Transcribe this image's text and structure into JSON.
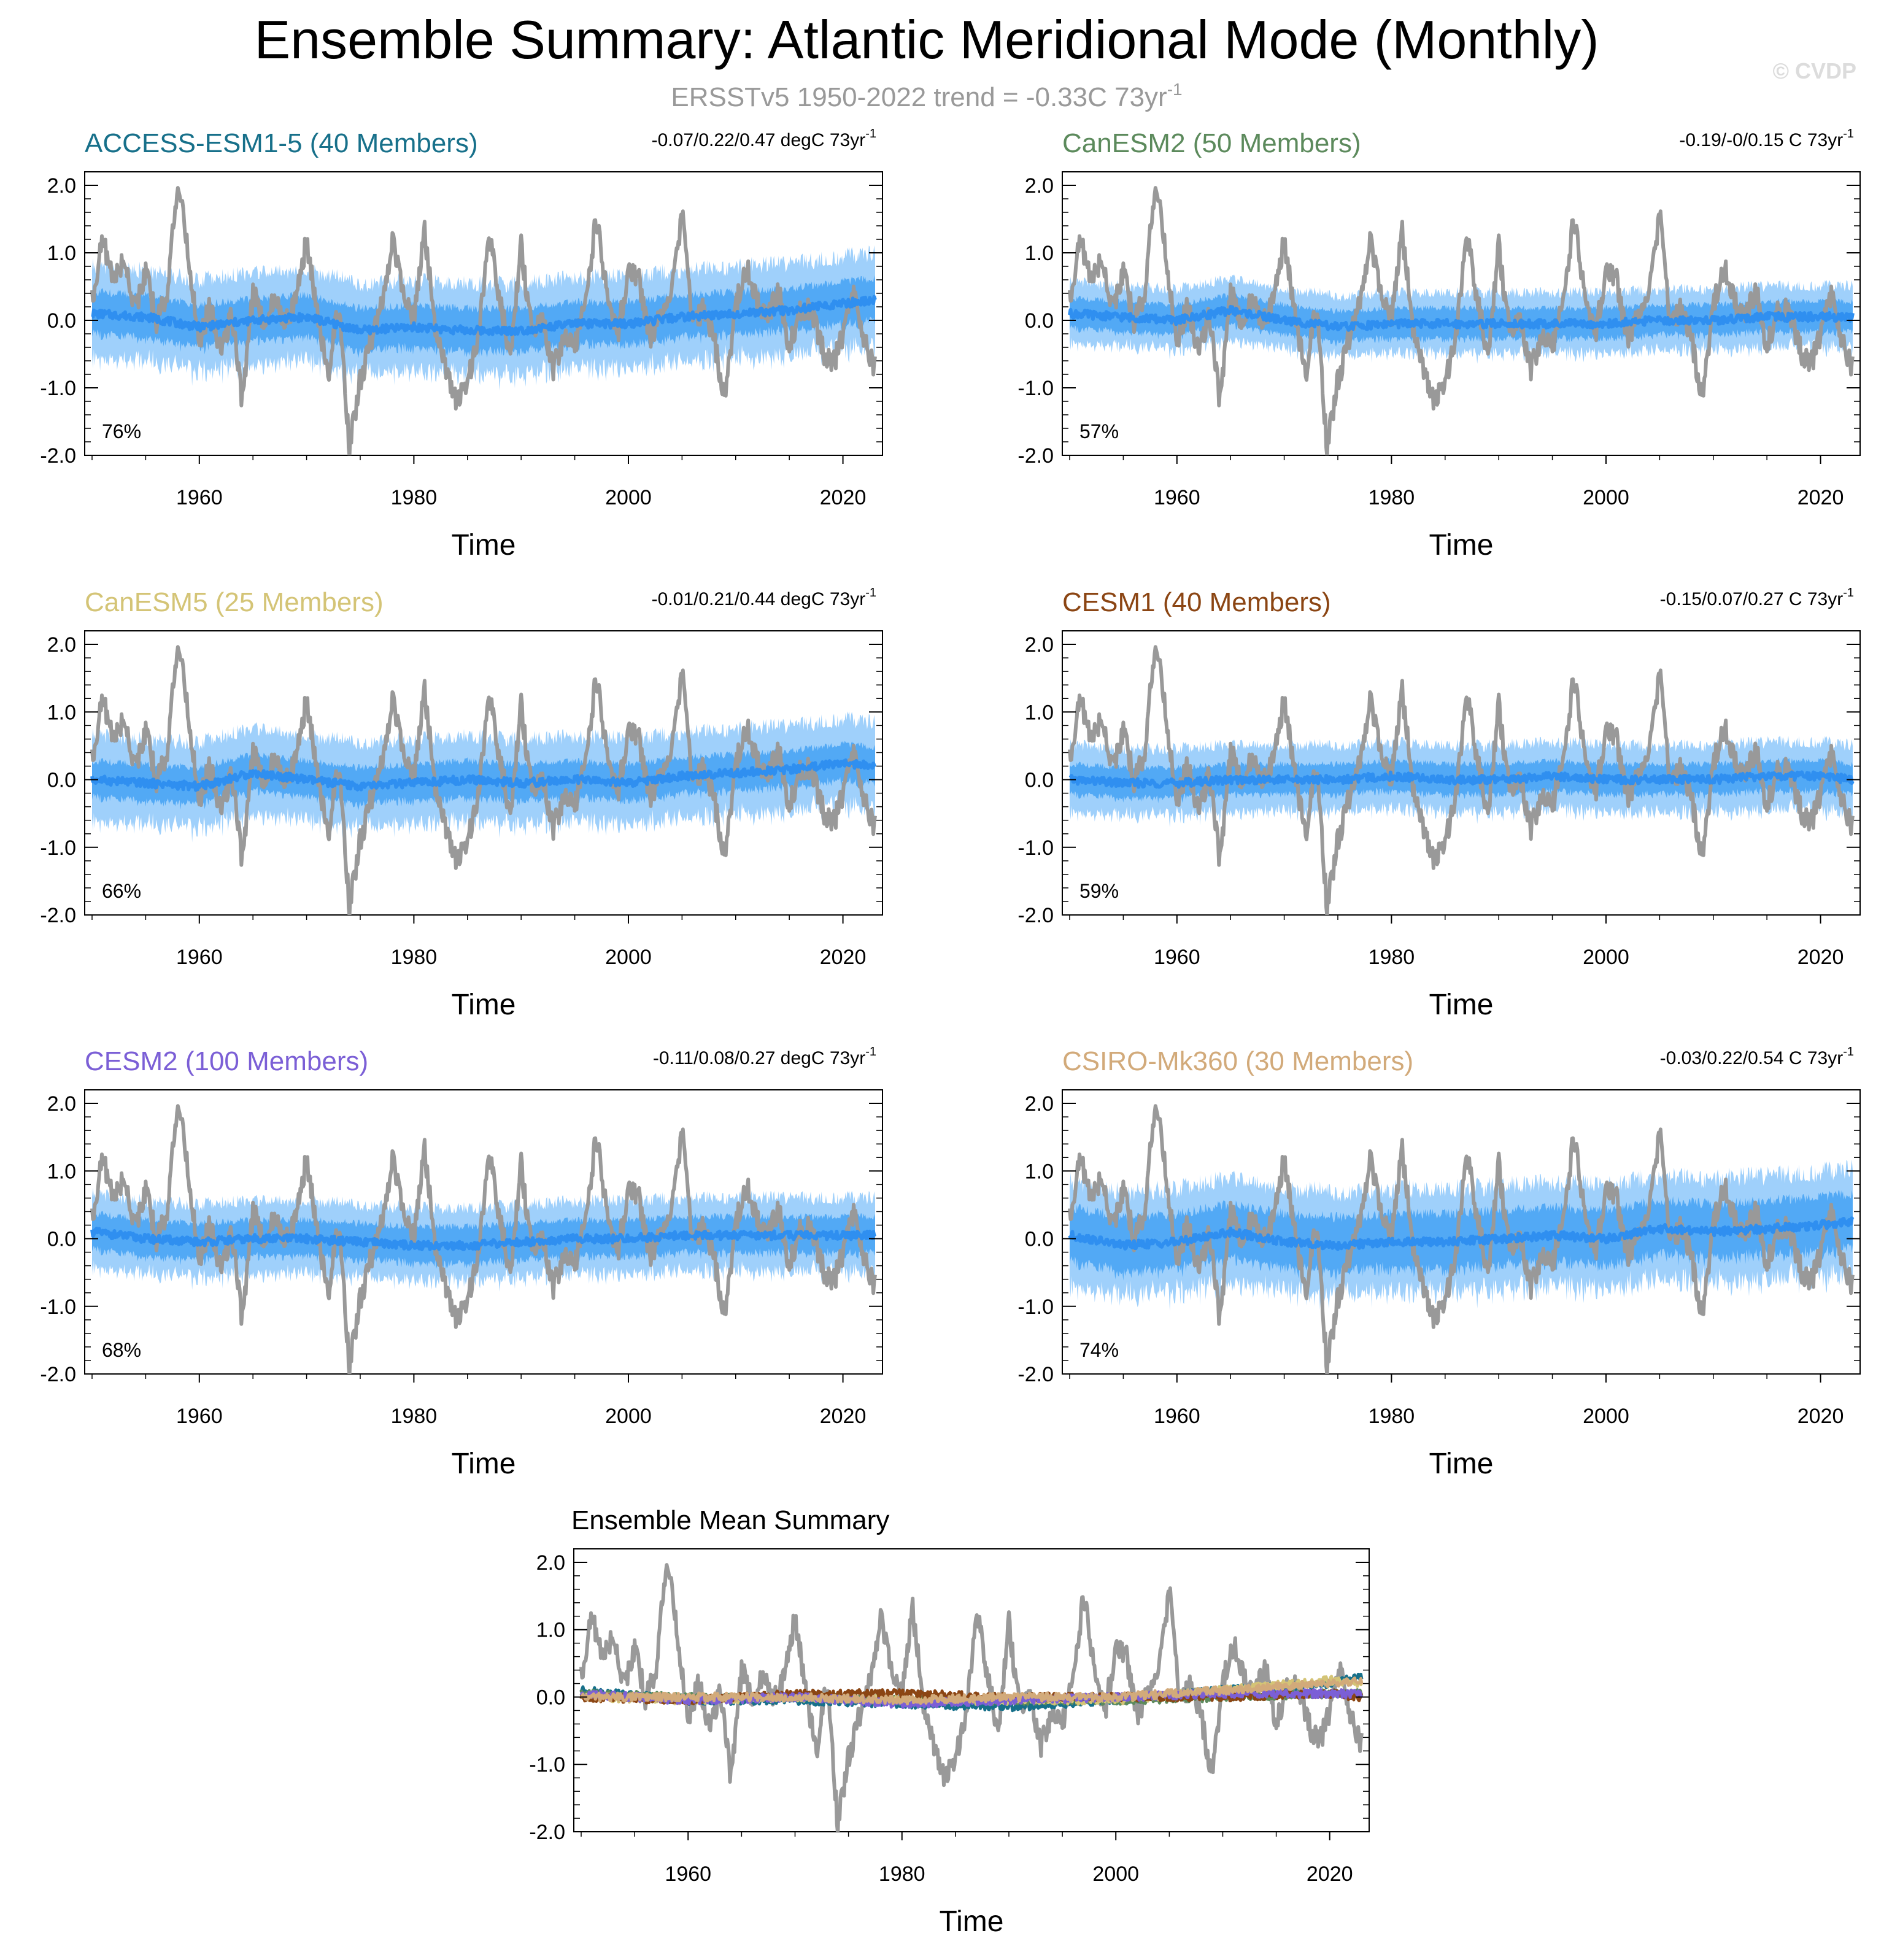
{
  "title": "Ensemble Summary: Atlantic Meridional Mode (Monthly)",
  "subtitle": {
    "text": "ERSSTv5 1950-2022 trend = -0.33C 73yr",
    "sup": "-1"
  },
  "watermark": "© CVDP",
  "colors": {
    "observed": "#999999",
    "ensemble_mean": "#2f8ff0",
    "spread_outer": "#9fd0fb",
    "spread_inner": "#52a9f5",
    "subtitle": "#999999",
    "watermark": "#dcdcdc"
  },
  "chart_data": [
    {
      "type": "line",
      "title": "ACCESS-ESM1-5 (40 Members)",
      "title_color": "#17708a",
      "trend_text": "-0.07/0.22/0.47 degC 73yr",
      "trend_sup": "-1",
      "pct_label": "76%",
      "xlabel": "Time",
      "xlim": [
        1950,
        2023
      ],
      "ylim": [
        -2.0,
        2.2
      ],
      "xticks": [
        "1960",
        "1980",
        "2000",
        "2020"
      ],
      "yticks": [
        "2.0",
        "1.0",
        "0.0",
        "-1.0",
        "-2.0"
      ],
      "series": [
        {
          "role": "ensemble-mean",
          "x": [
            1950,
            1955,
            1960,
            1965,
            1970,
            1975,
            1980,
            1985,
            1990,
            1995,
            2000,
            2005,
            2010,
            2015,
            2020,
            2023
          ],
          "values": [
            0.1,
            0.05,
            -0.1,
            0.0,
            0.05,
            -0.15,
            -0.1,
            -0.15,
            -0.15,
            -0.05,
            -0.05,
            0.05,
            0.1,
            0.15,
            0.25,
            0.3
          ]
        },
        {
          "role": "spread-outer",
          "halfwidth": 0.75
        },
        {
          "role": "spread-inner",
          "halfwidth": 0.35
        }
      ]
    },
    {
      "type": "line",
      "title": "CanESM2 (50 Members)",
      "title_color": "#5c8a5c",
      "trend_text": "-0.19/-0/0.15 C 73yr",
      "trend_sup": "-1",
      "pct_label": "57%",
      "xlabel": "Time",
      "xlim": [
        1950,
        2023
      ],
      "ylim": [
        -2.0,
        2.2
      ],
      "xticks": [
        "1960",
        "1980",
        "2000",
        "2020"
      ],
      "yticks": [
        "2.0",
        "1.0",
        "0.0",
        "-1.0",
        "-2.0"
      ],
      "series": [
        {
          "role": "ensemble-mean",
          "x": [
            1950,
            1955,
            1960,
            1965,
            1970,
            1975,
            1980,
            1985,
            1990,
            1995,
            2000,
            2005,
            2010,
            2015,
            2020,
            2023
          ],
          "values": [
            0.1,
            0.05,
            0.0,
            0.15,
            0.0,
            -0.1,
            -0.05,
            -0.05,
            -0.05,
            -0.05,
            -0.05,
            0.0,
            0.0,
            0.05,
            0.05,
            0.05
          ]
        },
        {
          "role": "spread-outer",
          "halfwidth": 0.5
        },
        {
          "role": "spread-inner",
          "halfwidth": 0.25
        }
      ]
    },
    {
      "type": "line",
      "title": "CanESM5 (25 Members)",
      "title_color": "#d4c476",
      "trend_text": "-0.01/0.21/0.44 degC 73yr",
      "trend_sup": "-1",
      "pct_label": "66%",
      "xlabel": "Time",
      "xlim": [
        1950,
        2023
      ],
      "ylim": [
        -2.0,
        2.2
      ],
      "xticks": [
        "1960",
        "1980",
        "2000",
        "2020"
      ],
      "yticks": [
        "2.0",
        "1.0",
        "0.0",
        "-1.0",
        "-2.0"
      ],
      "series": [
        {
          "role": "ensemble-mean",
          "x": [
            1950,
            1955,
            1960,
            1965,
            1970,
            1975,
            1980,
            1985,
            1990,
            1995,
            2000,
            2005,
            2010,
            2015,
            2020,
            2023
          ],
          "values": [
            0.0,
            -0.05,
            -0.1,
            0.1,
            0.0,
            -0.1,
            -0.05,
            0.0,
            -0.05,
            0.0,
            -0.05,
            0.05,
            0.1,
            0.15,
            0.25,
            0.2
          ]
        },
        {
          "role": "spread-outer",
          "halfwidth": 0.7
        },
        {
          "role": "spread-inner",
          "halfwidth": 0.3
        }
      ]
    },
    {
      "type": "line",
      "title": "CESM1 (40 Members)",
      "title_color": "#8b4513",
      "trend_text": "-0.15/0.07/0.27 C 73yr",
      "trend_sup": "-1",
      "pct_label": "59%",
      "xlabel": "Time",
      "xlim": [
        1950,
        2023
      ],
      "ylim": [
        -2.0,
        2.2
      ],
      "xticks": [
        "1960",
        "1980",
        "2000",
        "2020"
      ],
      "yticks": [
        "2.0",
        "1.0",
        "0.0",
        "-1.0",
        "-2.0"
      ],
      "series": [
        {
          "role": "ensemble-mean",
          "x": [
            1950,
            1955,
            1960,
            1965,
            1970,
            1975,
            1980,
            1985,
            1990,
            1995,
            2000,
            2005,
            2010,
            2015,
            2020,
            2023
          ],
          "values": [
            0.0,
            -0.05,
            -0.05,
            0.0,
            0.0,
            0.0,
            0.05,
            0.0,
            0.0,
            0.05,
            0.0,
            0.0,
            0.0,
            0.05,
            0.05,
            0.0
          ]
        },
        {
          "role": "spread-outer",
          "halfwidth": 0.55
        },
        {
          "role": "spread-inner",
          "halfwidth": 0.25
        }
      ]
    },
    {
      "type": "line",
      "title": "CESM2 (100 Members)",
      "title_color": "#7b5fd6",
      "trend_text": "-0.11/0.08/0.27 degC 73yr",
      "trend_sup": "-1",
      "pct_label": "68%",
      "xlabel": "Time",
      "xlim": [
        1950,
        2023
      ],
      "ylim": [
        -2.0,
        2.2
      ],
      "xticks": [
        "1960",
        "1980",
        "2000",
        "2020"
      ],
      "yticks": [
        "2.0",
        "1.0",
        "0.0",
        "-1.0",
        "-2.0"
      ],
      "series": [
        {
          "role": "ensemble-mean",
          "x": [
            1950,
            1955,
            1960,
            1965,
            1970,
            1975,
            1980,
            1985,
            1990,
            1995,
            2000,
            2005,
            2010,
            2015,
            2020,
            2023
          ],
          "values": [
            0.1,
            0.0,
            -0.05,
            0.0,
            0.0,
            -0.05,
            -0.1,
            -0.1,
            -0.05,
            0.0,
            0.0,
            0.05,
            0.05,
            0.05,
            0.05,
            0.05
          ]
        },
        {
          "role": "spread-outer",
          "halfwidth": 0.6
        },
        {
          "role": "spread-inner",
          "halfwidth": 0.3
        }
      ]
    },
    {
      "type": "line",
      "title": "CSIRO-Mk360 (30 Members)",
      "title_color": "#d2aa7a",
      "trend_text": "-0.03/0.22/0.54 C 73yr",
      "trend_sup": "-1",
      "pct_label": "74%",
      "xlabel": "Time",
      "xlim": [
        1950,
        2023
      ],
      "ylim": [
        -2.0,
        2.2
      ],
      "xticks": [
        "1960",
        "1980",
        "2000",
        "2020"
      ],
      "yticks": [
        "2.0",
        "1.0",
        "0.0",
        "-1.0",
        "-2.0"
      ],
      "series": [
        {
          "role": "ensemble-mean",
          "x": [
            1950,
            1955,
            1960,
            1965,
            1970,
            1975,
            1980,
            1985,
            1990,
            1995,
            2000,
            2005,
            2010,
            2015,
            2020,
            2023
          ],
          "values": [
            0.05,
            -0.1,
            -0.05,
            0.1,
            -0.05,
            -0.1,
            -0.05,
            -0.05,
            0.0,
            0.05,
            0.0,
            0.15,
            0.1,
            0.15,
            0.2,
            0.25
          ]
        },
        {
          "role": "spread-outer",
          "halfwidth": 0.85
        },
        {
          "role": "spread-inner",
          "halfwidth": 0.45
        }
      ]
    },
    {
      "type": "line",
      "title": "Ensemble Mean Summary",
      "title_color": "#000000",
      "xlabel": "Time",
      "xlim": [
        1950,
        2023
      ],
      "ylim": [
        -2.0,
        2.2
      ],
      "xticks": [
        "1960",
        "1980",
        "2000",
        "2020"
      ],
      "yticks": [
        "2.0",
        "1.0",
        "0.0",
        "-1.0",
        "-2.0"
      ],
      "series": [
        {
          "role": "ensemble-mean",
          "color": "#17708a",
          "x": [
            1950,
            1960,
            1970,
            1980,
            1990,
            2000,
            2010,
            2020,
            2023
          ],
          "values": [
            0.1,
            -0.05,
            -0.05,
            -0.1,
            -0.15,
            -0.05,
            0.1,
            0.2,
            0.3
          ]
        },
        {
          "role": "ensemble-mean",
          "color": "#5c8a5c",
          "x": [
            1950,
            1960,
            1970,
            1980,
            1990,
            2000,
            2010,
            2020,
            2023
          ],
          "values": [
            0.05,
            0.0,
            0.0,
            -0.05,
            -0.05,
            -0.05,
            0.0,
            0.05,
            0.05
          ]
        },
        {
          "role": "ensemble-mean",
          "color": "#d4c476",
          "x": [
            1950,
            1960,
            1970,
            1980,
            1990,
            2000,
            2010,
            2020,
            2023
          ],
          "values": [
            0.0,
            -0.05,
            0.0,
            -0.05,
            -0.05,
            -0.05,
            0.1,
            0.25,
            0.2
          ]
        },
        {
          "role": "ensemble-mean",
          "color": "#8b4513",
          "x": [
            1950,
            1960,
            1970,
            1980,
            1990,
            2000,
            2010,
            2020,
            2023
          ],
          "values": [
            0.0,
            -0.05,
            0.05,
            0.05,
            0.0,
            0.0,
            0.0,
            0.05,
            0.0
          ]
        },
        {
          "role": "ensemble-mean",
          "color": "#7b5fd6",
          "x": [
            1950,
            1960,
            1970,
            1980,
            1990,
            2000,
            2010,
            2020,
            2023
          ],
          "values": [
            0.05,
            -0.05,
            0.0,
            -0.1,
            -0.05,
            0.0,
            0.05,
            0.05,
            0.05
          ]
        },
        {
          "role": "ensemble-mean",
          "color": "#d2aa7a",
          "x": [
            1950,
            1960,
            1970,
            1980,
            1990,
            2000,
            2010,
            2020,
            2023
          ],
          "values": [
            0.0,
            0.0,
            0.0,
            -0.05,
            0.0,
            0.0,
            0.1,
            0.2,
            0.25
          ]
        }
      ]
    }
  ],
  "observed_series": {
    "label": "ERSSTv5",
    "x": [
      1950,
      1951,
      1952,
      1953,
      1954,
      1955,
      1956,
      1957,
      1958,
      1959,
      1960,
      1961,
      1962,
      1963,
      1964,
      1965,
      1966,
      1967,
      1968,
      1969,
      1970,
      1971,
      1972,
      1973,
      1974,
      1975,
      1976,
      1977,
      1978,
      1979,
      1980,
      1981,
      1982,
      1983,
      1984,
      1985,
      1986,
      1987,
      1988,
      1989,
      1990,
      1991,
      1992,
      1993,
      1994,
      1995,
      1996,
      1997,
      1998,
      1999,
      2000,
      2001,
      2002,
      2003,
      2004,
      2005,
      2006,
      2007,
      2008,
      2009,
      2010,
      2011,
      2012,
      2013,
      2014,
      2015,
      2016,
      2017,
      2018,
      2019,
      2020,
      2021,
      2022,
      2023
    ],
    "values": [
      0.3,
      1.2,
      0.6,
      0.9,
      0.2,
      0.7,
      0.0,
      0.4,
      2.1,
      0.9,
      -0.3,
      0.2,
      -0.5,
      0.1,
      -1.2,
      0.4,
      0.0,
      0.3,
      0.0,
      0.3,
      1.2,
      0.1,
      -0.8,
      0.2,
      -1.9,
      -0.9,
      -0.3,
      0.2,
      1.2,
      0.5,
      0.0,
      1.3,
      -0.1,
      -0.8,
      -1.2,
      -0.9,
      -0.3,
      1.3,
      0.3,
      -0.5,
      1.1,
      -0.2,
      0.0,
      -0.7,
      -0.3,
      -0.4,
      0.3,
      1.5,
      0.4,
      -0.2,
      0.7,
      0.6,
      -0.3,
      0.1,
      0.4,
      1.6,
      -0.1,
      0.2,
      -0.3,
      -1.2,
      0.2,
      0.8,
      0.3,
      0.0,
      0.5,
      -0.4,
      0.1,
      0.2,
      -0.4,
      -0.7,
      -0.2,
      0.4,
      -0.3,
      -0.7
    ]
  }
}
